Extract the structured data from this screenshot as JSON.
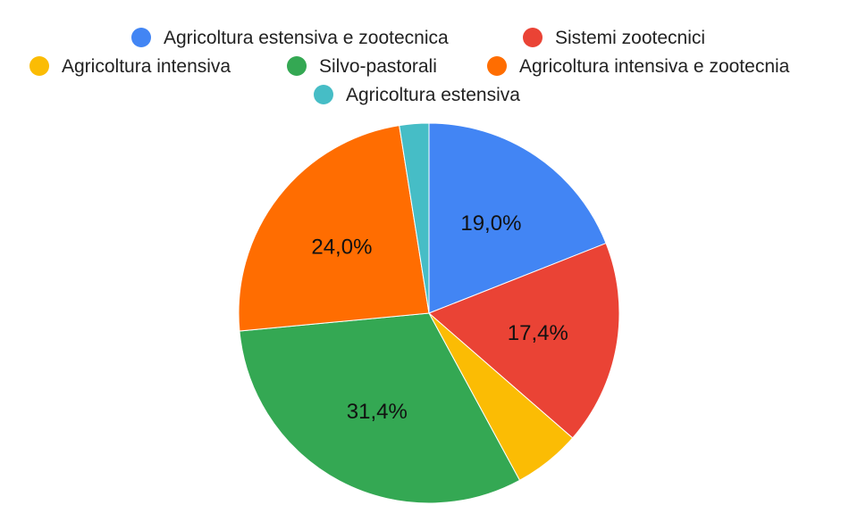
{
  "chart_data": {
    "type": "pie",
    "title": "",
    "legend_position": "top",
    "slices": [
      {
        "label": "Agricoltura estensiva e zootecnica",
        "value": 19.0,
        "display": "19,0%",
        "color": "#4285F4"
      },
      {
        "label": "Sistemi zootecnici",
        "value": 17.4,
        "display": "17,4%",
        "color": "#EA4335"
      },
      {
        "label": "Agricoltura intensiva",
        "value": 5.7,
        "display": "",
        "color": "#FBBC04"
      },
      {
        "label": "Silvo-pastorali",
        "value": 31.4,
        "display": "31,4%",
        "color": "#34A853"
      },
      {
        "label": "Agricoltura intensiva e zootecnia",
        "value": 24.0,
        "display": "24,0%",
        "color": "#FF6D01"
      },
      {
        "label": "Agricoltura estensiva",
        "value": 2.5,
        "display": "",
        "color": "#46BDC6"
      }
    ]
  }
}
